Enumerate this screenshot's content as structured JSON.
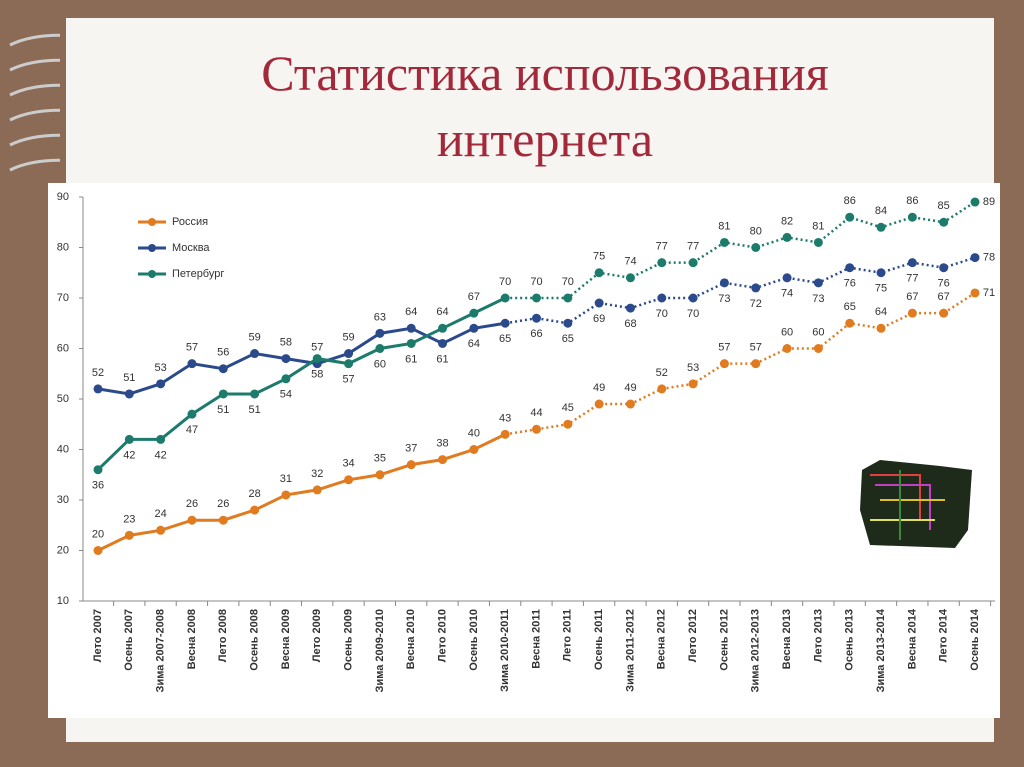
{
  "chart_data": {
    "type": "line",
    "title": "Статистика использования интернета",
    "categories": [
      "Лето 2007",
      "Осень 2007",
      "Зима 2007-2008",
      "Весна 2008",
      "Лето 2008",
      "Осень 2008",
      "Весна 2009",
      "Лето 2009",
      "Осень 2009",
      "Зима 2009-2010",
      "Весна 2010",
      "Лето 2010",
      "Осень 2010",
      "Зима 2010-2011",
      "Весна 2011",
      "Лето 2011",
      "Осень 2011",
      "Зима 2011-2012",
      "Весна 2012",
      "Лето 2012",
      "Осень 2012",
      "Зима 2012-2013",
      "Весна 2013",
      "Лето 2013",
      "Осень 2013",
      "Зима 2013-2014",
      "Весна 2014",
      "Лето 2014",
      "Осень 2014"
    ],
    "series": [
      {
        "name": "Россия",
        "color": "#e07b20",
        "values": [
          20,
          23,
          24,
          26,
          26,
          28,
          31,
          32,
          34,
          35,
          37,
          38,
          40,
          43,
          44,
          45,
          49,
          49,
          52,
          53,
          57,
          57,
          60,
          60,
          65,
          64,
          67,
          67,
          71
        ]
      },
      {
        "name": "Москва",
        "color": "#2b4a8b",
        "values": [
          52,
          51,
          53,
          57,
          56,
          59,
          58,
          57,
          59,
          63,
          64,
          61,
          64,
          65,
          66,
          65,
          69,
          68,
          70,
          70,
          73,
          72,
          74,
          73,
          76,
          75,
          77,
          76,
          78
        ]
      },
      {
        "name": "Петербург",
        "color": "#1d7b6b",
        "values": [
          36,
          42,
          42,
          47,
          51,
          51,
          54,
          58,
          57,
          60,
          61,
          64,
          67,
          70,
          70,
          70,
          75,
          74,
          77,
          77,
          81,
          80,
          82,
          81,
          86,
          84,
          86,
          85,
          89
        ]
      }
    ],
    "ylim": [
      10,
      90
    ],
    "yticks": [
      10,
      20,
      30,
      40,
      50,
      60,
      70,
      80,
      90
    ],
    "legend": "top-left"
  }
}
